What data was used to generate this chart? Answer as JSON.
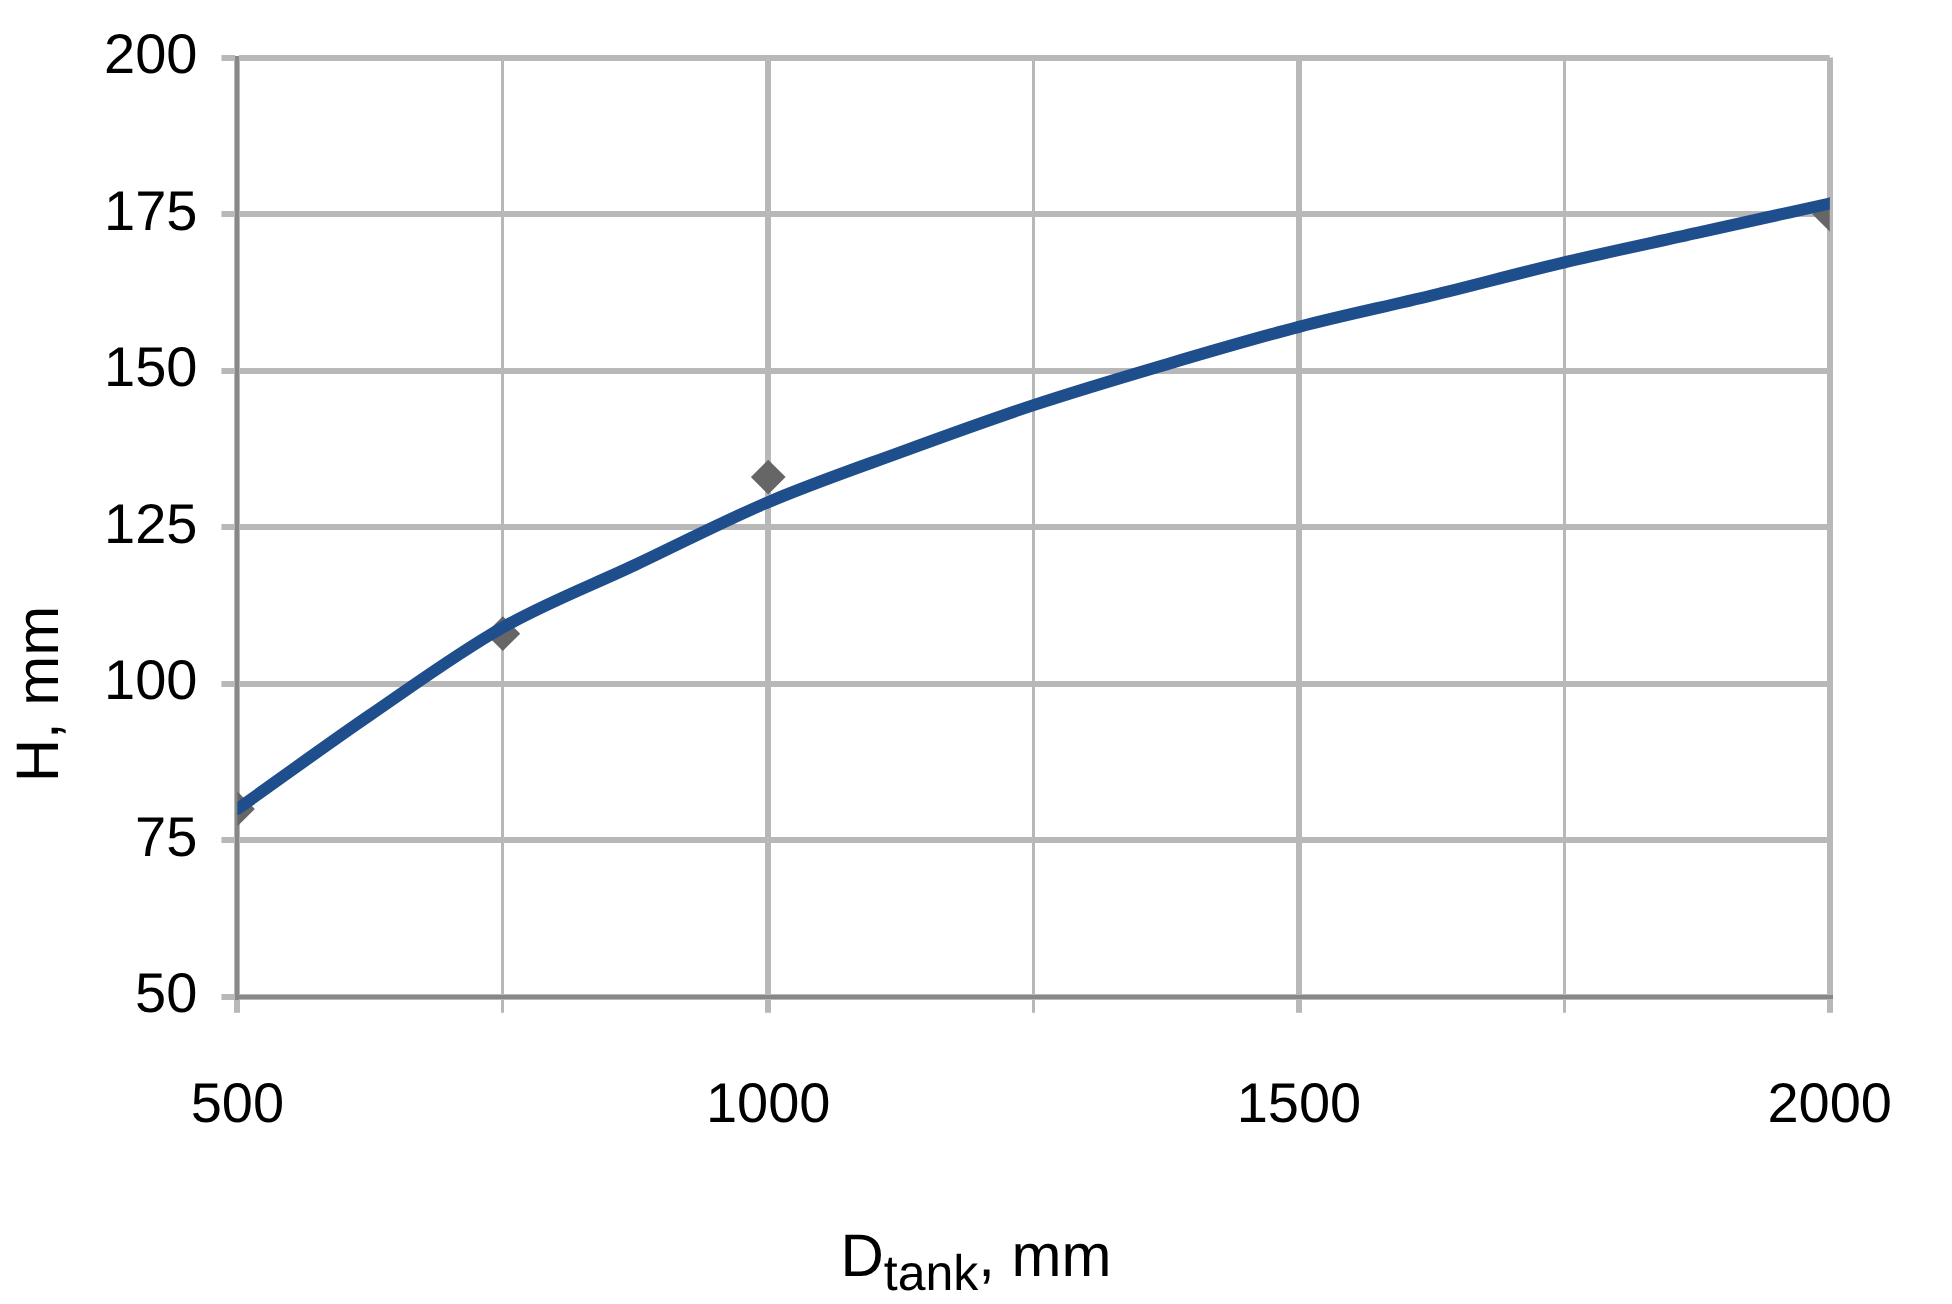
{
  "chart_data": {
    "type": "scatter",
    "xlabel": "D$_{tank}$, mm",
    "ylabel": "H, mm",
    "xlim": [
      500,
      2000
    ],
    "xticks": [
      500,
      {
        "value": 750,
        "label": null
      },
      1000,
      {
        "value": 1250,
        "label": null
      },
      1500,
      {
        "value": 1750,
        "label": null
      },
      2000
    ],
    "ylim": [
      50,
      200
    ],
    "yticks": [
      50,
      75,
      100,
      125,
      150,
      175,
      200
    ],
    "grid": true,
    "legend": false,
    "series": [
      {
        "color": "#666666",
        "marker": "diamond",
        "x": [
          500,
          750,
          1000,
          2000
        ],
        "values": [
          80,
          108,
          133,
          175
        ]
      },
      {
        "type": "line",
        "color": "#1f4e8c",
        "marker": "none",
        "line_style": "solid",
        "x": [
          500,
          625,
          750,
          875,
          1000,
          1125,
          1250,
          1375,
          1500,
          1625,
          1750,
          1875,
          2000
        ],
        "values": [
          80,
          95,
          109,
          119,
          129,
          137,
          144.5,
          151,
          157,
          162,
          167.3,
          172,
          176.7
        ]
      }
    ]
  }
}
